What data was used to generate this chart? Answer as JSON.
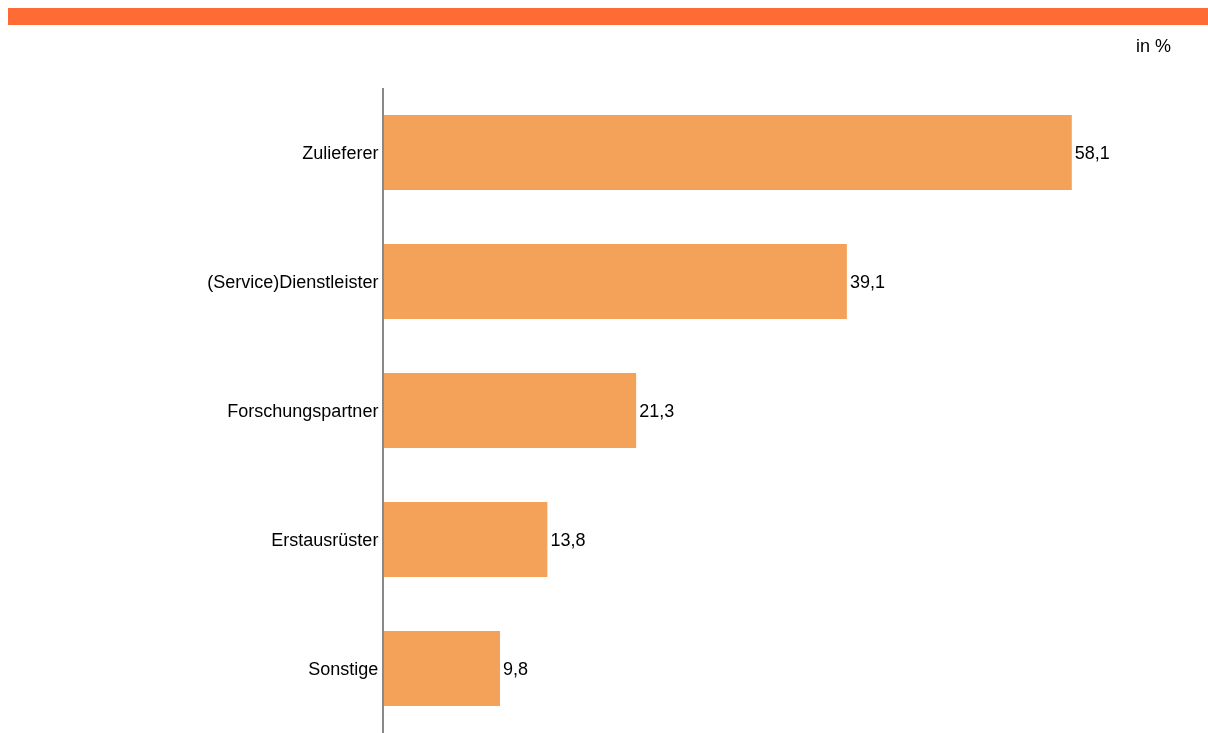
{
  "chart_data": {
    "type": "bar",
    "orientation": "horizontal",
    "categories": [
      "Zulieferer",
      "(Service)Dienstleister",
      "Forschungspartner",
      "Erstausrüster",
      "Sonstige"
    ],
    "values": [
      58.1,
      39.1,
      21.3,
      13.8,
      9.8
    ],
    "value_labels": [
      "58,1",
      "39,1",
      "21,3",
      "13,8",
      "9,8"
    ],
    "color": "#f4a259",
    "annotations": [
      "in %"
    ]
  }
}
